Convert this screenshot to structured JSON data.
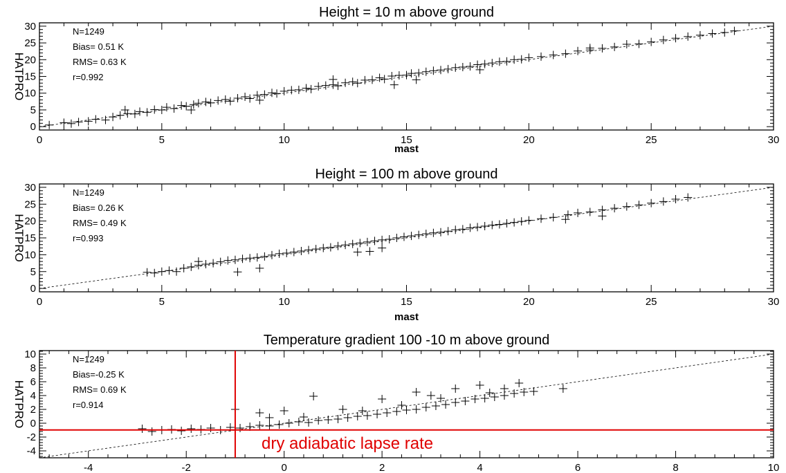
{
  "chart_data": [
    {
      "type": "scatter",
      "title": "Height = 10 m above ground",
      "xlabel": "mast",
      "ylabel": "HATPRO",
      "xlim": [
        0,
        30
      ],
      "ylim": [
        -1,
        31
      ],
      "xticks": [
        "0",
        "5",
        "10",
        "15",
        "20",
        "25",
        "30"
      ],
      "yticks": [
        "0",
        "5",
        "10",
        "15",
        "20",
        "25",
        "30"
      ],
      "stats": [
        "N=1249",
        "Bias= 0.51 K",
        "RMS= 0.63 K",
        "r=0.992"
      ],
      "reference_line": "1:1",
      "marker": "plus",
      "points": [
        [
          0.4,
          0.5
        ],
        [
          1.0,
          1.2
        ],
        [
          1.3,
          0.9
        ],
        [
          1.6,
          1.4
        ],
        [
          2.0,
          1.6
        ],
        [
          2.3,
          2.2
        ],
        [
          2.7,
          2.0
        ],
        [
          3.0,
          2.9
        ],
        [
          3.3,
          3.4
        ],
        [
          3.6,
          3.9
        ],
        [
          3.9,
          3.8
        ],
        [
          4.1,
          4.5
        ],
        [
          4.4,
          4.3
        ],
        [
          4.7,
          5.1
        ],
        [
          5.0,
          5.0
        ],
        [
          5.2,
          5.8
        ],
        [
          5.5,
          5.4
        ],
        [
          5.8,
          6.3
        ],
        [
          6.0,
          6.1
        ],
        [
          6.3,
          6.6
        ],
        [
          6.5,
          7.0
        ],
        [
          6.8,
          7.4
        ],
        [
          7.0,
          7.1
        ],
        [
          7.3,
          7.8
        ],
        [
          7.6,
          8.1
        ],
        [
          7.8,
          7.6
        ],
        [
          8.1,
          8.5
        ],
        [
          8.4,
          8.9
        ],
        [
          8.6,
          8.4
        ],
        [
          8.9,
          9.4
        ],
        [
          9.2,
          9.6
        ],
        [
          9.5,
          10.1
        ],
        [
          9.7,
          9.9
        ],
        [
          10.0,
          10.6
        ],
        [
          10.3,
          10.9
        ],
        [
          10.6,
          11.0
        ],
        [
          10.9,
          11.5
        ],
        [
          11.1,
          11.2
        ],
        [
          11.4,
          12.0
        ],
        [
          11.7,
          12.3
        ],
        [
          12.0,
          12.5
        ],
        [
          12.2,
          12.2
        ],
        [
          12.5,
          13.1
        ],
        [
          12.8,
          13.4
        ],
        [
          13.0,
          13.0
        ],
        [
          13.3,
          13.9
        ],
        [
          13.6,
          14.0
        ],
        [
          13.9,
          14.6
        ],
        [
          14.1,
          14.2
        ],
        [
          14.4,
          15.1
        ],
        [
          14.7,
          15.3
        ],
        [
          15.0,
          15.4
        ],
        [
          15.2,
          15.9
        ],
        [
          15.5,
          16.0
        ],
        [
          15.8,
          16.4
        ],
        [
          16.1,
          16.7
        ],
        [
          16.4,
          16.9
        ],
        [
          16.7,
          17.2
        ],
        [
          17.0,
          17.6
        ],
        [
          17.3,
          17.8
        ],
        [
          17.6,
          18.0
        ],
        [
          17.9,
          18.5
        ],
        [
          18.2,
          18.7
        ],
        [
          18.5,
          19.0
        ],
        [
          18.8,
          19.4
        ],
        [
          19.1,
          19.5
        ],
        [
          19.4,
          20.0
        ],
        [
          19.7,
          20.1
        ],
        [
          20.0,
          20.6
        ],
        [
          20.5,
          20.9
        ],
        [
          21.0,
          21.4
        ],
        [
          21.5,
          21.8
        ],
        [
          22.0,
          22.6
        ],
        [
          22.5,
          22.9
        ],
        [
          23.0,
          23.4
        ],
        [
          23.5,
          23.8
        ],
        [
          24.0,
          24.6
        ],
        [
          24.5,
          24.7
        ],
        [
          25.0,
          25.3
        ],
        [
          25.5,
          25.9
        ],
        [
          26.0,
          26.4
        ],
        [
          26.5,
          26.9
        ],
        [
          27.0,
          27.3
        ],
        [
          27.5,
          27.8
        ],
        [
          28.0,
          28.1
        ],
        [
          28.4,
          28.6
        ],
        [
          6.2,
          5.0
        ],
        [
          9.0,
          7.9
        ],
        [
          12.0,
          14.1
        ],
        [
          14.5,
          12.5
        ],
        [
          15.4,
          14.0
        ],
        [
          18.0,
          17.0
        ],
        [
          22.5,
          23.5
        ],
        [
          3.5,
          5.0
        ]
      ]
    },
    {
      "type": "scatter",
      "title": "Height = 100 m above ground",
      "xlabel": "mast",
      "ylabel": "HATPRO",
      "xlim": [
        0,
        30
      ],
      "ylim": [
        -1,
        31
      ],
      "xticks": [
        "0",
        "5",
        "10",
        "15",
        "20",
        "25",
        "30"
      ],
      "yticks": [
        "0",
        "5",
        "10",
        "15",
        "20",
        "25",
        "30"
      ],
      "stats": [
        "N=1249",
        "Bias= 0.26 K",
        "RMS= 0.49 K",
        "r=0.993"
      ],
      "reference_line": "1:1",
      "marker": "plus",
      "points": [
        [
          4.4,
          4.8
        ],
        [
          4.7,
          4.6
        ],
        [
          5.0,
          5.0
        ],
        [
          5.3,
          5.3
        ],
        [
          5.6,
          5.0
        ],
        [
          5.9,
          6.0
        ],
        [
          6.2,
          6.4
        ],
        [
          6.5,
          6.9
        ],
        [
          6.8,
          7.2
        ],
        [
          7.1,
          7.5
        ],
        [
          7.4,
          7.9
        ],
        [
          7.7,
          8.3
        ],
        [
          8.0,
          8.5
        ],
        [
          8.3,
          8.8
        ],
        [
          8.6,
          9.0
        ],
        [
          8.9,
          9.2
        ],
        [
          9.2,
          9.5
        ],
        [
          9.5,
          9.9
        ],
        [
          9.8,
          10.3
        ],
        [
          10.1,
          10.5
        ],
        [
          10.4,
          10.8
        ],
        [
          10.7,
          11.1
        ],
        [
          11.0,
          11.4
        ],
        [
          11.3,
          11.7
        ],
        [
          11.6,
          12.0
        ],
        [
          11.9,
          12.2
        ],
        [
          12.2,
          12.6
        ],
        [
          12.5,
          12.9
        ],
        [
          12.8,
          13.2
        ],
        [
          13.1,
          13.5
        ],
        [
          13.4,
          13.8
        ],
        [
          13.7,
          14.1
        ],
        [
          14.0,
          14.4
        ],
        [
          14.3,
          14.6
        ],
        [
          14.6,
          15.0
        ],
        [
          14.9,
          15.3
        ],
        [
          15.2,
          15.6
        ],
        [
          15.5,
          15.9
        ],
        [
          15.8,
          16.2
        ],
        [
          16.1,
          16.5
        ],
        [
          16.4,
          16.7
        ],
        [
          16.7,
          17.0
        ],
        [
          17.0,
          17.4
        ],
        [
          17.3,
          17.6
        ],
        [
          17.6,
          18.0
        ],
        [
          17.9,
          18.2
        ],
        [
          18.2,
          18.5
        ],
        [
          18.5,
          18.8
        ],
        [
          18.8,
          19.0
        ],
        [
          19.1,
          19.3
        ],
        [
          19.4,
          19.6
        ],
        [
          19.7,
          19.9
        ],
        [
          20.0,
          20.2
        ],
        [
          20.5,
          20.7
        ],
        [
          21.0,
          21.1
        ],
        [
          21.6,
          21.9
        ],
        [
          22.0,
          22.4
        ],
        [
          22.5,
          22.7
        ],
        [
          23.0,
          23.3
        ],
        [
          23.5,
          23.8
        ],
        [
          24.0,
          24.3
        ],
        [
          24.5,
          24.8
        ],
        [
          25.0,
          25.3
        ],
        [
          25.5,
          25.8
        ],
        [
          26.0,
          26.5
        ],
        [
          26.5,
          27.0
        ],
        [
          8.1,
          4.9
        ],
        [
          9.0,
          6.0
        ],
        [
          13.0,
          10.8
        ],
        [
          13.5,
          11.0
        ],
        [
          14.0,
          12.0
        ],
        [
          6.5,
          8.0
        ],
        [
          21.5,
          20.5
        ],
        [
          23.0,
          21.5
        ]
      ]
    },
    {
      "type": "scatter",
      "title": "Temperature gradient 100 -10 m above ground",
      "xlabel": "",
      "ylabel": "HATPRO",
      "xlim": [
        -5,
        10
      ],
      "ylim": [
        -5,
        10.5
      ],
      "xticks": [
        "-4",
        "-2",
        "0",
        "2",
        "4",
        "6",
        "8",
        "10"
      ],
      "yticks": [
        "-4",
        "-2",
        "0",
        "2",
        "4",
        "6",
        "8",
        "10"
      ],
      "stats": [
        "N=1249",
        "Bias=-0.25 K",
        "RMS= 0.69 K",
        "r=0.914"
      ],
      "reference_line": "1:1",
      "marker": "plus",
      "annotation": "dry adiabatic lapse rate",
      "lapse_rate_x": -1,
      "lapse_rate_y": -0.98,
      "points": [
        [
          -2.9,
          -0.8
        ],
        [
          -2.7,
          -1.2
        ],
        [
          -2.5,
          -1.0
        ],
        [
          -2.3,
          -0.9
        ],
        [
          -2.1,
          -1.1
        ],
        [
          -1.9,
          -0.8
        ],
        [
          -1.7,
          -0.9
        ],
        [
          -1.5,
          -0.7
        ],
        [
          -1.3,
          -1.0
        ],
        [
          -1.1,
          -0.6
        ],
        [
          -0.9,
          -0.7
        ],
        [
          -0.7,
          -0.5
        ],
        [
          -0.5,
          -0.3
        ],
        [
          -0.3,
          -0.4
        ],
        [
          -0.1,
          -0.2
        ],
        [
          0.1,
          0.0
        ],
        [
          0.3,
          0.2
        ],
        [
          0.5,
          0.1
        ],
        [
          0.7,
          0.4
        ],
        [
          0.9,
          0.5
        ],
        [
          1.1,
          0.6
        ],
        [
          1.3,
          0.8
        ],
        [
          1.5,
          1.0
        ],
        [
          1.7,
          1.1
        ],
        [
          1.9,
          1.3
        ],
        [
          2.1,
          1.5
        ],
        [
          2.3,
          1.7
        ],
        [
          2.5,
          1.9
        ],
        [
          2.7,
          2.0
        ],
        [
          2.9,
          2.3
        ],
        [
          3.1,
          2.5
        ],
        [
          3.3,
          2.7
        ],
        [
          3.5,
          3.0
        ],
        [
          3.7,
          3.2
        ],
        [
          3.9,
          3.5
        ],
        [
          4.1,
          3.6
        ],
        [
          4.3,
          3.8
        ],
        [
          4.5,
          4.0
        ],
        [
          4.7,
          4.3
        ],
        [
          4.9,
          4.5
        ],
        [
          5.1,
          4.6
        ],
        [
          5.7,
          5.0
        ],
        [
          -1.0,
          2.0
        ],
        [
          -0.5,
          1.5
        ],
        [
          0.0,
          1.8
        ],
        [
          0.6,
          3.9
        ],
        [
          1.2,
          2.0
        ],
        [
          2.0,
          3.5
        ],
        [
          2.7,
          4.5
        ],
        [
          3.0,
          4.0
        ],
        [
          3.5,
          5.0
        ],
        [
          4.0,
          5.5
        ],
        [
          4.5,
          5.0
        ],
        [
          4.8,
          5.8
        ],
        [
          -0.3,
          0.8
        ],
        [
          0.4,
          0.9
        ],
        [
          1.6,
          1.8
        ],
        [
          2.4,
          2.6
        ],
        [
          3.2,
          3.6
        ],
        [
          4.2,
          4.4
        ]
      ]
    }
  ]
}
